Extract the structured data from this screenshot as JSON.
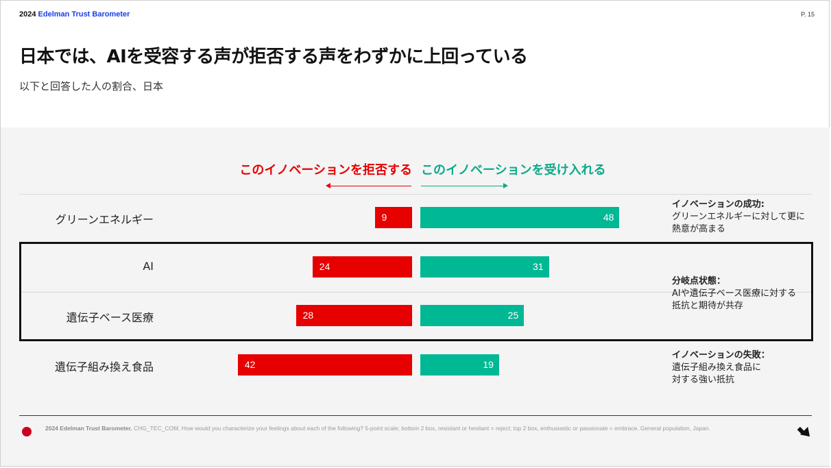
{
  "header": {
    "year": "2024",
    "brand": "Edelman Trust Barometer",
    "page": "P. 15"
  },
  "title": "日本では、AIを受容する声が拒否する声をわずかに上回っている",
  "subtitle": "以下と回答した人の割合、日本",
  "legend": {
    "reject": "このイノベーションを拒否する",
    "accept": "このイノベーションを受け入れる"
  },
  "colors": {
    "reject": "#e60000",
    "accept": "#00b894"
  },
  "chart_data": {
    "type": "bar",
    "orientation": "horizontal-diverging",
    "unit": "%",
    "categories": [
      "グリーンエネルギー",
      "AI",
      "遺伝子ベース医療",
      "遺伝子組み換え食品"
    ],
    "series": [
      {
        "name": "このイノベーションを拒否する",
        "values": [
          9,
          24,
          28,
          42
        ]
      },
      {
        "name": "このイノベーションを受け入れる",
        "values": [
          48,
          31,
          25,
          19
        ]
      }
    ]
  },
  "notes": [
    {
      "heading": "イノベーションの成功:",
      "lines": [
        "グリーンエネルギーに対して更に",
        "熱意が高まる"
      ]
    },
    {
      "heading": "分岐点状態：",
      "lines": [
        "AIや遺伝子ベース医療に対する",
        "抵抗と期待が共存"
      ]
    },
    {
      "heading": "イノベーションの失敗：",
      "lines": [
        "遺伝子組み換え食品に",
        "対する強い抵抗"
      ]
    }
  ],
  "footer": {
    "source_bold": "2024 Edelman Trust Barometer.",
    "source_text": " CHG_TEC_COM. How would you characterize your feelings about each of the following? 5-point scale; bottom 2 box, resistant or hesitant = reject; top 2 box, enthusiastic or passionate = embrace. General population, Japan.",
    "flag": "japan-flag-icon",
    "next": "arrow-icon"
  }
}
